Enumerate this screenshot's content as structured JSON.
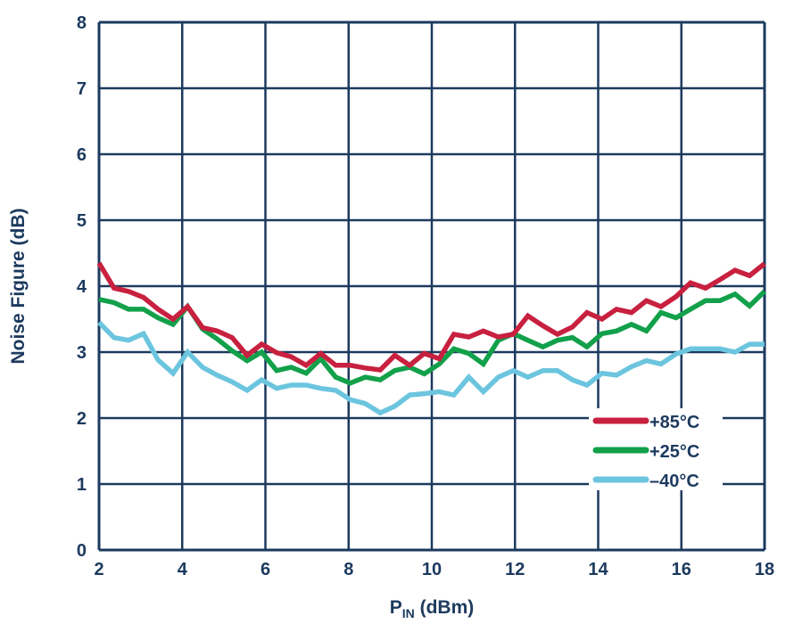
{
  "chart_data": {
    "type": "line",
    "title": "",
    "xlabel_main": "P",
    "xlabel_sub": "IN",
    "xlabel_rest": " (dBm)",
    "ylabel": "Noise Figure (dB)",
    "xlim": [
      2,
      18
    ],
    "ylim": [
      0,
      8
    ],
    "xticks": [
      2,
      4,
      6,
      8,
      10,
      12,
      14,
      16,
      18
    ],
    "yticks": [
      0,
      1,
      2,
      3,
      4,
      5,
      6,
      7,
      8
    ],
    "grid": true,
    "legend_position": "bottom-right",
    "x": [
      2.0,
      2.36,
      2.71,
      3.07,
      3.42,
      3.78,
      4.13,
      4.49,
      4.84,
      5.2,
      5.56,
      5.91,
      6.27,
      6.62,
      6.98,
      7.33,
      7.69,
      8.04,
      8.4,
      8.76,
      9.11,
      9.47,
      9.82,
      10.18,
      10.53,
      10.89,
      11.24,
      11.6,
      11.96,
      12.31,
      12.67,
      13.02,
      13.38,
      13.73,
      14.09,
      14.44,
      14.8,
      15.16,
      15.51,
      15.87,
      16.22,
      16.58,
      16.93,
      17.29,
      17.64,
      18.0
    ],
    "series": [
      {
        "name": "+85°C",
        "color": "#c8203f",
        "values": [
          4.35,
          3.97,
          3.92,
          3.83,
          3.65,
          3.5,
          3.69,
          3.37,
          3.32,
          3.22,
          2.95,
          3.12,
          2.99,
          2.93,
          2.8,
          2.98,
          2.8,
          2.8,
          2.76,
          2.73,
          2.95,
          2.8,
          2.98,
          2.9,
          3.27,
          3.23,
          3.32,
          3.23,
          3.27,
          3.55,
          3.4,
          3.27,
          3.38,
          3.6,
          3.5,
          3.65,
          3.6,
          3.78,
          3.69,
          3.84,
          4.05,
          3.97,
          4.1,
          4.24,
          4.16,
          4.34
        ]
      },
      {
        "name": "+25°C",
        "color": "#12a04a",
        "values": [
          3.8,
          3.75,
          3.65,
          3.65,
          3.52,
          3.42,
          3.69,
          3.35,
          3.2,
          3.02,
          2.87,
          3.0,
          2.72,
          2.77,
          2.68,
          2.9,
          2.62,
          2.53,
          2.62,
          2.58,
          2.72,
          2.77,
          2.67,
          2.82,
          3.05,
          2.98,
          2.82,
          3.18,
          3.28,
          3.18,
          3.08,
          3.18,
          3.22,
          3.08,
          3.28,
          3.32,
          3.42,
          3.32,
          3.6,
          3.52,
          3.65,
          3.78,
          3.78,
          3.88,
          3.7,
          3.92
        ]
      },
      {
        "name": "–40°C",
        "color": "#6cc5de",
        "values": [
          3.45,
          3.22,
          3.18,
          3.28,
          2.88,
          2.68,
          3.0,
          2.77,
          2.65,
          2.55,
          2.42,
          2.58,
          2.45,
          2.5,
          2.5,
          2.45,
          2.42,
          2.28,
          2.22,
          2.08,
          2.18,
          2.35,
          2.37,
          2.4,
          2.35,
          2.62,
          2.4,
          2.62,
          2.72,
          2.62,
          2.72,
          2.72,
          2.58,
          2.5,
          2.68,
          2.65,
          2.78,
          2.87,
          2.82,
          2.97,
          3.05,
          3.05,
          3.05,
          3.0,
          3.12,
          3.12
        ]
      }
    ],
    "grid_color": "#1c3a5e"
  }
}
